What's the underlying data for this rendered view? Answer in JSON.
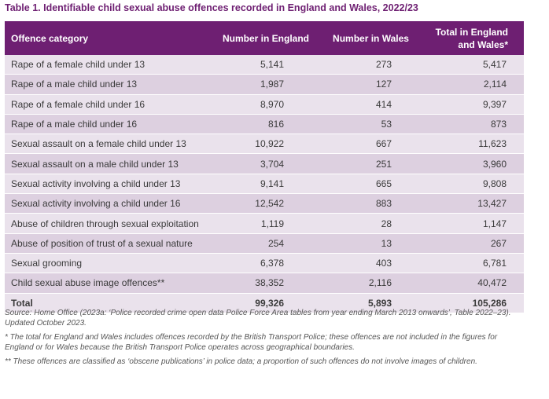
{
  "title": "Table 1. Identifiable child sexual abuse offences recorded in England and Wales, 2022/23",
  "headers": {
    "category": "Offence category",
    "england": "Number in England",
    "wales": "Number in Wales",
    "total_line1": "Total in England",
    "total_line2": "and Wales*"
  },
  "rows": [
    {
      "category": "Rape of a female child under 13",
      "england": "5,141",
      "wales": "273",
      "total": "5,417"
    },
    {
      "category": "Rape of a male child under 13",
      "england": "1,987",
      "wales": "127",
      "total": "2,114"
    },
    {
      "category": "Rape of a female child under 16",
      "england": "8,970",
      "wales": "414",
      "total": "9,397"
    },
    {
      "category": "Rape of a male child under 16",
      "england": "816",
      "wales": "53",
      "total": "873"
    },
    {
      "category": "Sexual assault on a female child under 13",
      "england": "10,922",
      "wales": "667",
      "total": "11,623"
    },
    {
      "category": "Sexual assault on a male child under 13",
      "england": "3,704",
      "wales": "251",
      "total": "3,960"
    },
    {
      "category": "Sexual activity involving a child under 13",
      "england": "9,141",
      "wales": "665",
      "total": "9,808"
    },
    {
      "category": "Sexual activity involving a child under 16",
      "england": "12,542",
      "wales": "883",
      "total": "13,427"
    },
    {
      "category": "Abuse of children through sexual exploitation",
      "england": "1,119",
      "wales": "28",
      "total": "1,147"
    },
    {
      "category": "Abuse of position of trust of a sexual nature",
      "england": "254",
      "wales": "13",
      "total": "267"
    },
    {
      "category": "Sexual grooming",
      "england": "6,378",
      "wales": "403",
      "total": "6,781"
    },
    {
      "category": "Child sexual abuse image offences**",
      "england": "38,352",
      "wales": "2,116",
      "total": "40,472"
    }
  ],
  "total_row": {
    "category": "Total",
    "england": "99,326",
    "wales": "5,893",
    "total": "105,286"
  },
  "notes": {
    "source": "Source: Home Office (2023a: ‘Police recorded crime open data Police Force Area tables from year ending March 2013 onwards’, Table 2022–23). Updated October 2023.",
    "note1": "* The total for England and Wales includes offences recorded by the British Transport Police; these offences are not included in the figures for England or for Wales because the British Transport Police operates across geographical boundaries.",
    "note2": "** These offences are classified as ‘obscene publications’ in police data; a proportion of such offences do not involve images of children."
  },
  "colors": {
    "header_bg": "#6e1f72",
    "row_light": "#eae2ec",
    "row_dark": "#ddd0e0"
  }
}
